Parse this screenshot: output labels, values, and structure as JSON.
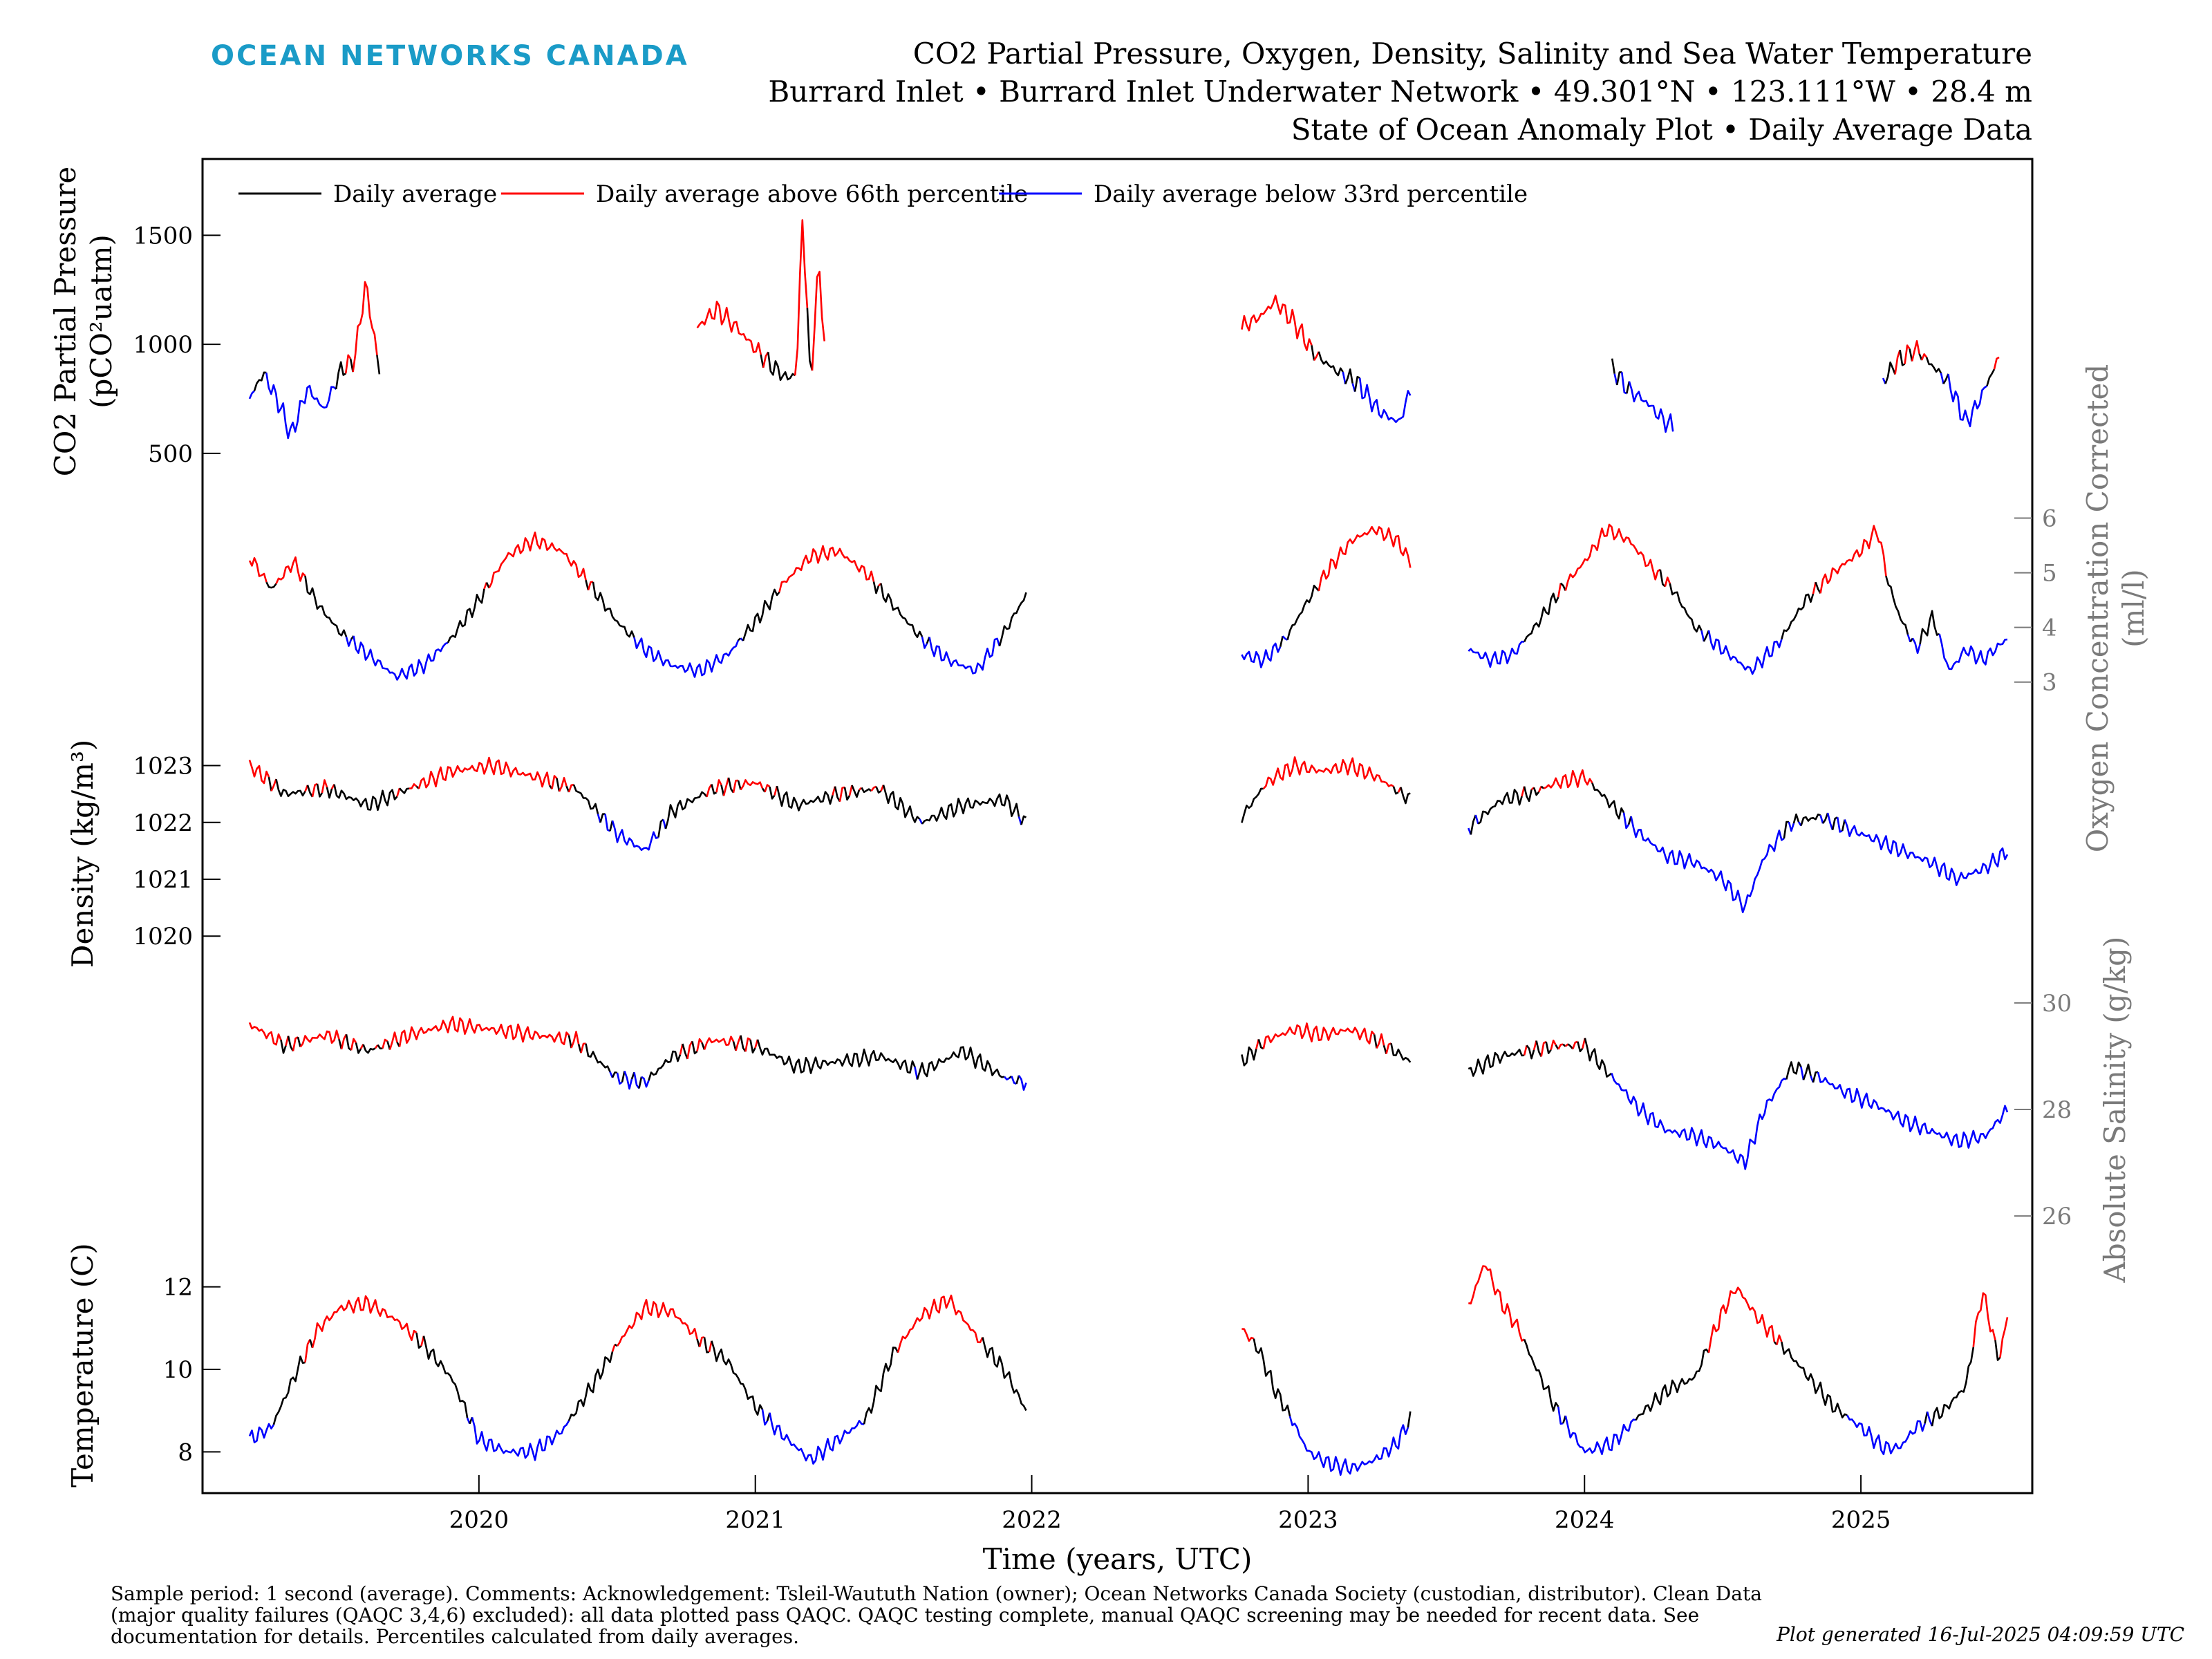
{
  "header": {
    "brand": "OCEAN NETWORKS CANADA",
    "title_lines": [
      "CO2 Partial Pressure, Oxygen, Density, Salinity and Sea Water Temperature",
      "Burrard Inlet • Burrard Inlet Underwater Network • 49.301°N • 123.111°W • 28.4 m",
      "State of Ocean Anomaly Plot • Daily Average Data"
    ]
  },
  "legend": [
    {
      "label": "Daily average",
      "color": "#000000"
    },
    {
      "label": "Daily average above 66th percentile",
      "color": "#ff0000"
    },
    {
      "label": "Daily average below 33rd percentile",
      "color": "#0000ff"
    }
  ],
  "xaxis": {
    "label": "Time (years, UTC)",
    "ticks": [
      "2020",
      "2021",
      "2022",
      "2023",
      "2024",
      "2025"
    ]
  },
  "footer": {
    "note": "Sample period: 1 second (average). Comments: Acknowledgement: Tsleil-Waututh Nation (owner); Ocean Networks Canada Society (custodian, distributor). Clean Data (major quality failures (QAQC 3,4,6) excluded): all data plotted pass QAQC. QAQC testing complete, manual QAQC screening may be needed for recent data. See documentation for details. Percentiles calculated from daily averages.",
    "generated": "Plot generated 16-Jul-2025 04:09:59 UTC"
  },
  "colors": {
    "normal": "#000000",
    "high": "#ff0000",
    "low": "#0000ff",
    "secondary_axis": "#7a7a7a",
    "brand": "#1a9bc7"
  },
  "chart_data": [
    {
      "type": "line",
      "name": "co2",
      "ylabel": "CO2 Partial Pressure (pCO2 uatm)",
      "ylabel_lines": [
        "CO2 Partial Pressure",
        "(pCO²uatm)"
      ],
      "axis_side": "left",
      "yticks": [
        500,
        1000,
        1500
      ],
      "ylim": [
        360,
        1850
      ],
      "segments": [
        {
          "x": [
            2019.17,
            2019.22,
            2019.28,
            2019.32,
            2019.38,
            2019.44,
            2019.5,
            2019.55,
            2019.59,
            2019.64
          ],
          "y": [
            750,
            870,
            720,
            580,
            800,
            700,
            880,
            930,
            1280,
            880
          ]
        },
        {
          "x": [
            2020.79,
            2020.86,
            2020.93,
            2021.0,
            2021.06,
            2021.12,
            2021.15,
            2021.17,
            2021.2,
            2021.23,
            2021.25
          ],
          "y": [
            1080,
            1160,
            1080,
            980,
            900,
            840,
            880,
            1600,
            820,
            1380,
            1000
          ]
        },
        {
          "x": [
            2022.76,
            2022.83,
            2022.88,
            2022.95,
            2023.02,
            2023.1,
            2023.18,
            2023.26,
            2023.33,
            2023.37
          ],
          "y": [
            1080,
            1130,
            1200,
            1100,
            960,
            880,
            820,
            690,
            640,
            790
          ]
        },
        {
          "x": [
            2024.1,
            2024.16,
            2024.22,
            2024.28,
            2024.32
          ],
          "y": [
            890,
            790,
            740,
            660,
            620
          ]
        },
        {
          "x": [
            2025.08,
            2025.13,
            2025.2,
            2025.26,
            2025.32,
            2025.38,
            2025.42,
            2025.46,
            2025.5
          ],
          "y": [
            830,
            920,
            980,
            900,
            820,
            640,
            720,
            830,
            940
          ]
        }
      ]
    },
    {
      "type": "line",
      "name": "oxygen",
      "ylabel": "Oxygen Concentration Corrected (ml/l)",
      "ylabel_lines": [
        "Oxygen Concentration Corrected",
        "(ml/l)"
      ],
      "axis_side": "right",
      "yticks": [
        3,
        4,
        5,
        6
      ],
      "ylim": [
        2.2,
        6.5
      ],
      "segments": [
        {
          "x": [
            2019.17,
            2019.25,
            2019.33,
            2019.42,
            2019.5,
            2019.6,
            2019.7,
            2019.8,
            2019.9,
            2020.0,
            2020.1,
            2020.2,
            2020.3,
            2020.4,
            2020.5,
            2020.6,
            2020.7,
            2020.8,
            2020.9,
            2021.0,
            2021.1,
            2021.2,
            2021.3,
            2021.4,
            2021.5,
            2021.6,
            2021.7,
            2021.8,
            2021.9,
            2021.98
          ],
          "y": [
            5.3,
            4.7,
            5.2,
            4.4,
            3.9,
            3.5,
            3.1,
            3.3,
            3.8,
            4.5,
            5.3,
            5.6,
            5.4,
            4.8,
            4.1,
            3.6,
            3.3,
            3.2,
            3.5,
            4.1,
            4.8,
            5.3,
            5.4,
            5.0,
            4.4,
            3.8,
            3.4,
            3.2,
            3.9,
            4.6
          ]
        },
        {
          "x": [
            2022.76,
            2022.84,
            2022.92,
            2023.0,
            2023.08,
            2023.16,
            2023.24,
            2023.32,
            2023.37
          ],
          "y": [
            3.5,
            3.4,
            3.8,
            4.5,
            5.1,
            5.6,
            5.8,
            5.6,
            5.2
          ]
        },
        {
          "x": [
            2023.58,
            2023.66,
            2023.74,
            2023.82,
            2023.9,
            2024.0,
            2024.08,
            2024.16,
            2024.24,
            2024.32,
            2024.4,
            2024.5,
            2024.6,
            2024.7,
            2024.8,
            2024.9,
            2025.0,
            2025.06,
            2025.1,
            2025.14,
            2025.2,
            2025.26,
            2025.32,
            2025.38,
            2025.44,
            2025.53
          ],
          "y": [
            3.6,
            3.4,
            3.5,
            4.0,
            4.6,
            5.2,
            5.8,
            5.6,
            5.1,
            4.7,
            4.0,
            3.6,
            3.2,
            3.7,
            4.5,
            5.0,
            5.4,
            5.8,
            4.8,
            4.2,
            3.6,
            4.2,
            3.2,
            3.6,
            3.4,
            3.8
          ]
        }
      ]
    },
    {
      "type": "line",
      "name": "density",
      "ylabel": "Density (kg/m3)",
      "ylabel_lines": [
        "Density (kg/m³)"
      ],
      "axis_side": "left",
      "yticks": [
        1020,
        1021,
        1022,
        1023
      ],
      "ylim": [
        1019.2,
        1023.7
      ],
      "segments": [
        {
          "x": [
            2019.17,
            2019.3,
            2019.45,
            2019.6,
            2019.75,
            2019.9,
            2020.05,
            2020.2,
            2020.35,
            2020.5,
            2020.6,
            2020.7,
            2020.85,
            2021.0,
            2021.15,
            2021.3,
            2021.45,
            2021.6,
            2021.75,
            2021.9,
            2021.98
          ],
          "y": [
            1023.0,
            1022.5,
            1022.6,
            1022.3,
            1022.6,
            1022.9,
            1023.0,
            1022.8,
            1022.6,
            1021.8,
            1021.5,
            1022.2,
            1022.6,
            1022.7,
            1022.3,
            1022.5,
            1022.6,
            1022.0,
            1022.3,
            1022.4,
            1022.0
          ]
        },
        {
          "x": [
            2022.76,
            2022.85,
            2022.95,
            2023.05,
            2023.15,
            2023.25,
            2023.37
          ],
          "y": [
            1022.1,
            1022.7,
            1023.0,
            1022.9,
            1023.0,
            1022.8,
            1022.4
          ]
        },
        {
          "x": [
            2023.58,
            2023.7,
            2023.8,
            2023.9,
            2024.0,
            2024.1,
            2024.2,
            2024.3,
            2024.4,
            2024.5,
            2024.58,
            2024.65,
            2024.75,
            2024.85,
            2024.95,
            2025.05,
            2025.15,
            2025.25,
            2025.35,
            2025.45,
            2025.53
          ],
          "y": [
            1021.9,
            1022.4,
            1022.5,
            1022.7,
            1022.8,
            1022.3,
            1021.8,
            1021.4,
            1021.3,
            1021.0,
            1020.5,
            1021.4,
            1022.0,
            1022.1,
            1021.9,
            1021.7,
            1021.5,
            1021.3,
            1021.0,
            1021.2,
            1021.5
          ]
        }
      ]
    },
    {
      "type": "line",
      "name": "salinity",
      "ylabel": "Absolute Salinity (g/kg)",
      "ylabel_lines": [
        "Absolute Salinity (g/kg)"
      ],
      "axis_side": "right",
      "yticks": [
        26,
        28,
        30
      ],
      "ylim": [
        25.6,
        30.4
      ],
      "segments": [
        {
          "x": [
            2019.17,
            2019.3,
            2019.45,
            2019.6,
            2019.75,
            2019.9,
            2020.05,
            2020.2,
            2020.35,
            2020.5,
            2020.6,
            2020.7,
            2020.85,
            2021.0,
            2021.15,
            2021.3,
            2021.45,
            2021.6,
            2021.75,
            2021.9,
            2021.98
          ],
          "y": [
            29.6,
            29.2,
            29.4,
            29.1,
            29.4,
            29.6,
            29.5,
            29.4,
            29.3,
            28.6,
            28.5,
            29.0,
            29.3,
            29.2,
            28.8,
            28.9,
            29.0,
            28.7,
            29.1,
            28.6,
            28.5
          ]
        },
        {
          "x": [
            2022.76,
            2022.85,
            2022.95,
            2023.05,
            2023.15,
            2023.25,
            2023.37
          ],
          "y": [
            28.9,
            29.3,
            29.5,
            29.4,
            29.5,
            29.3,
            28.9
          ]
        },
        {
          "x": [
            2023.58,
            2023.7,
            2023.8,
            2023.9,
            2024.0,
            2024.1,
            2024.2,
            2024.3,
            2024.4,
            2024.5,
            2024.58,
            2024.65,
            2024.75,
            2024.85,
            2024.95,
            2025.05,
            2025.15,
            2025.25,
            2025.35,
            2025.45,
            2025.53
          ],
          "y": [
            28.7,
            29.0,
            29.1,
            29.2,
            29.2,
            28.6,
            28.0,
            27.6,
            27.5,
            27.3,
            27.0,
            28.0,
            28.8,
            28.6,
            28.3,
            28.1,
            27.8,
            27.6,
            27.4,
            27.5,
            28.0
          ]
        }
      ]
    },
    {
      "type": "line",
      "name": "temperature",
      "ylabel": "Temperature (C)",
      "ylabel_lines": [
        "Temperature (C)"
      ],
      "axis_side": "left",
      "yticks": [
        8,
        10,
        12
      ],
      "ylim": [
        7.0,
        13.2
      ],
      "segments": [
        {
          "x": [
            2019.17,
            2019.25,
            2019.33,
            2019.42,
            2019.5,
            2019.6,
            2019.7,
            2019.8,
            2019.9,
            2020.0,
            2020.1,
            2020.2,
            2020.3,
            2020.4,
            2020.5,
            2020.6,
            2020.7,
            2020.8,
            2020.9,
            2021.0,
            2021.1,
            2021.2,
            2021.3,
            2021.4,
            2021.5,
            2021.6,
            2021.7,
            2021.8,
            2021.9,
            2021.98
          ],
          "y": [
            8.3,
            8.6,
            9.8,
            11.0,
            11.5,
            11.6,
            11.2,
            10.6,
            9.8,
            8.3,
            8.0,
            8.0,
            8.5,
            9.5,
            10.6,
            11.5,
            11.4,
            10.7,
            10.2,
            9.1,
            8.4,
            7.8,
            8.3,
            8.8,
            10.4,
            11.3,
            11.7,
            10.8,
            10.0,
            9.0
          ]
        },
        {
          "x": [
            2022.76,
            2022.82,
            2022.88,
            2022.94,
            2023.0,
            2023.08,
            2023.16,
            2023.24,
            2023.32,
            2023.37
          ],
          "y": [
            11.0,
            10.5,
            9.5,
            8.8,
            8.0,
            7.7,
            7.6,
            7.8,
            8.2,
            8.8
          ]
        },
        {
          "x": [
            2023.58,
            2023.64,
            2023.7,
            2023.76,
            2023.82,
            2023.9,
            2024.0,
            2024.1,
            2024.2,
            2024.3,
            2024.4,
            2024.5,
            2024.55,
            2024.62,
            2024.7,
            2024.8,
            2024.9,
            2025.0,
            2025.08,
            2025.14,
            2025.2,
            2025.3,
            2025.38,
            2025.44,
            2025.5,
            2025.53
          ],
          "y": [
            11.5,
            12.6,
            11.6,
            11.0,
            10.1,
            9.0,
            8.0,
            8.2,
            8.9,
            9.5,
            9.8,
            11.4,
            12.0,
            11.3,
            10.7,
            9.9,
            9.1,
            8.6,
            8.1,
            8.1,
            8.6,
            9.0,
            9.6,
            11.9,
            10.2,
            11.3
          ]
        }
      ]
    }
  ]
}
